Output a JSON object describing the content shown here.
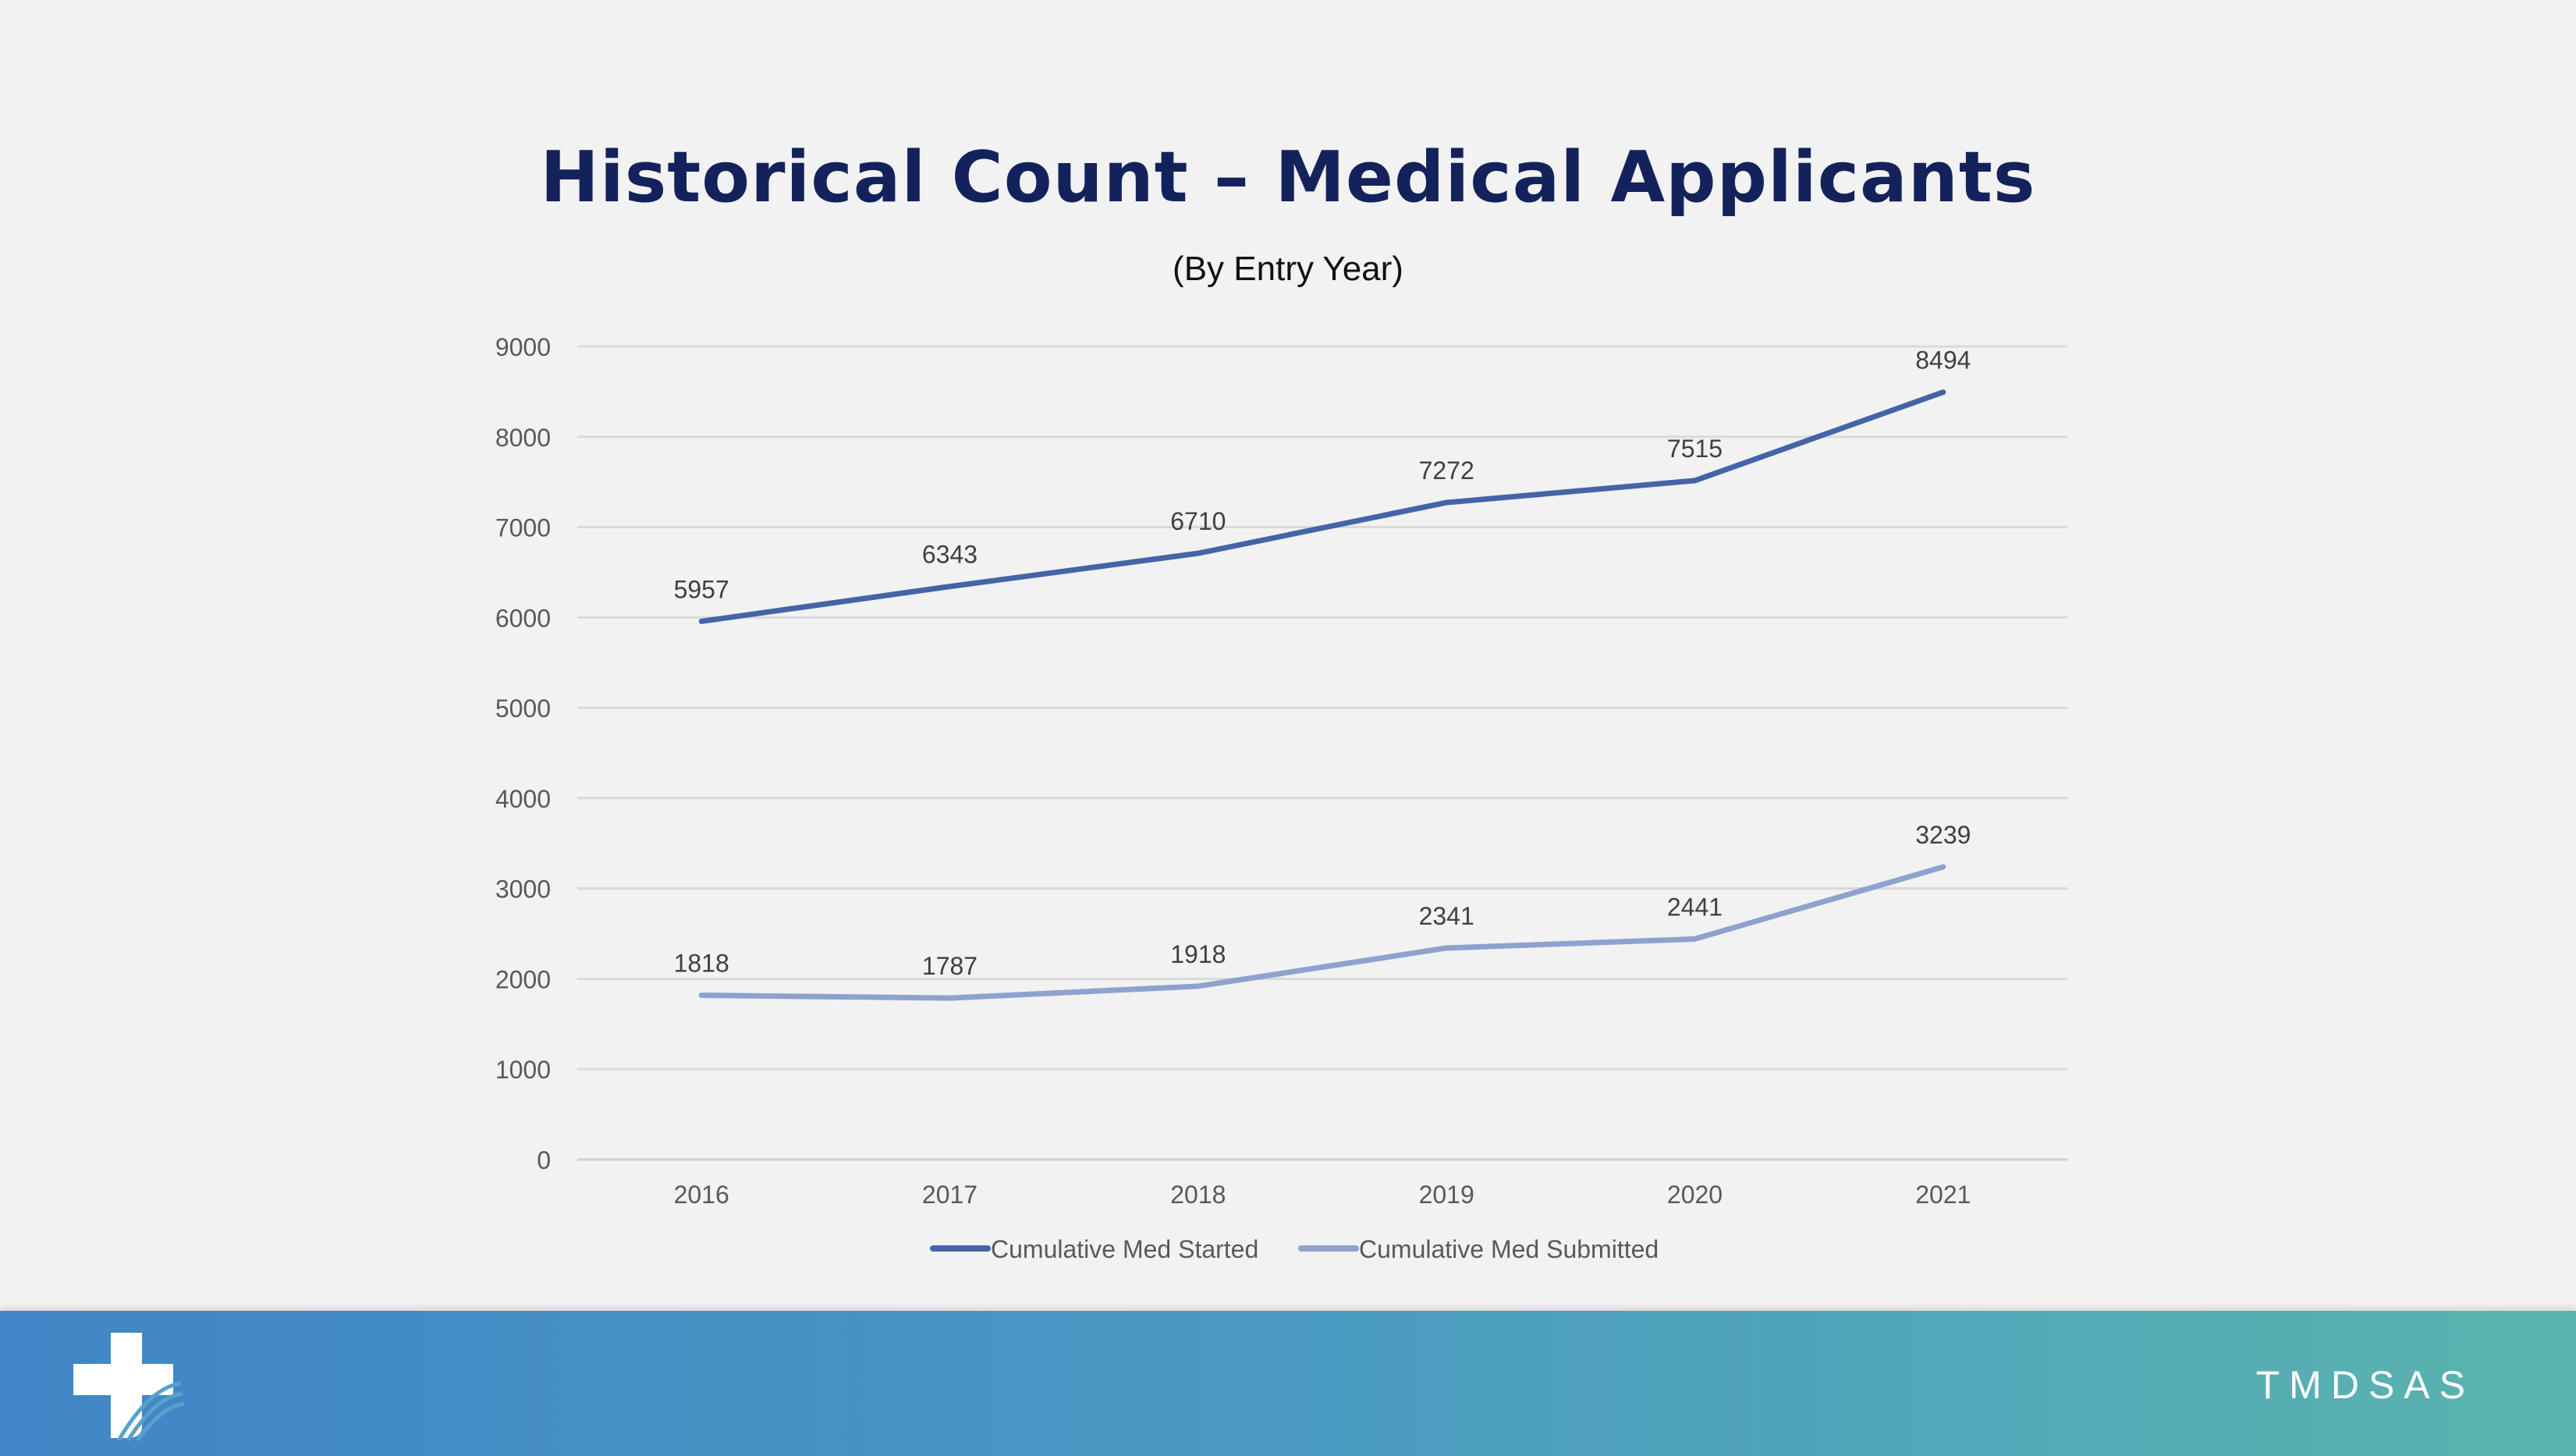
{
  "slide": {
    "title": "Historical Count – Medical Applicants",
    "subtitle": "(By Entry Year)"
  },
  "footer": {
    "brand": "TMDSAS",
    "logo_icon": "medical-cross-logo-icon"
  },
  "colors": {
    "title": "#14225c",
    "started": "#4564a8",
    "submitted": "#8fa1cf",
    "footer_start": "#3f86c6",
    "footer_end": "#5ab4ae"
  },
  "chart_data": {
    "type": "line",
    "title": "Historical Count – Medical Applicants",
    "subtitle": "(By Entry Year)",
    "categories": [
      "2016",
      "2017",
      "2018",
      "2019",
      "2020",
      "2021"
    ],
    "series": [
      {
        "name": "Cumulative Med Started",
        "values": [
          5957,
          6343,
          6710,
          7272,
          7515,
          8494
        ]
      },
      {
        "name": "Cumulative Med Submitted",
        "values": [
          1818,
          1787,
          1918,
          2341,
          2441,
          3239
        ]
      }
    ],
    "ylim": [
      0,
      9000
    ],
    "yticks": [
      0,
      1000,
      2000,
      3000,
      4000,
      5000,
      6000,
      7000,
      8000,
      9000
    ],
    "xlabel": "",
    "ylabel": "",
    "grid": true,
    "data_labels": true,
    "legend": "bottom"
  }
}
